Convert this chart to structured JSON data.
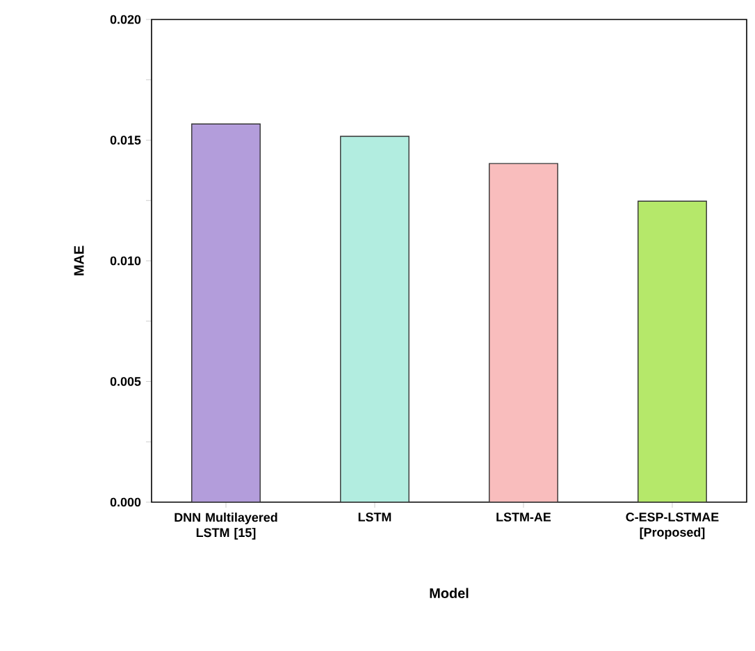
{
  "chart_data": {
    "type": "bar",
    "xlabel": "Model",
    "ylabel": "MAE",
    "categories": [
      "DNN Multilayered LSTM [15]",
      "LSTM",
      "LSTM-AE",
      "C-ESP-LSTMAE [Proposed]"
    ],
    "values": [
      0.01567,
      0.01516,
      0.01403,
      0.01247
    ],
    "colors": [
      "#b39ddb",
      "#b2ede0",
      "#f9bdbd",
      "#b5e86a"
    ],
    "ylim": [
      0,
      0.02
    ],
    "yticks": [
      {
        "value": 0,
        "label": "0.000"
      },
      {
        "value": 0.0025,
        "label": null
      },
      {
        "value": 0.005,
        "label": "0.005"
      },
      {
        "value": 0.0075,
        "label": null
      },
      {
        "value": 0.01,
        "label": "0.010"
      },
      {
        "value": 0.0125,
        "label": null
      },
      {
        "value": 0.015,
        "label": "0.015"
      },
      {
        "value": 0.0175,
        "label": null
      },
      {
        "value": 0.02,
        "label": "0.020"
      }
    ]
  }
}
